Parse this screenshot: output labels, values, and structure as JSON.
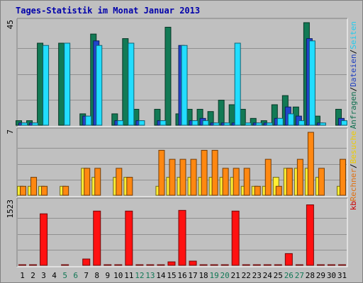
{
  "chart_data": {
    "type": "bar",
    "title": "Tages-Statistik im Monat Januar 2013",
    "categories": [
      "1",
      "2",
      "3",
      "4",
      "5",
      "6",
      "7",
      "8",
      "9",
      "10",
      "11",
      "12",
      "13",
      "14",
      "15",
      "16",
      "17",
      "18",
      "19",
      "20",
      "21",
      "22",
      "23",
      "24",
      "25",
      "26",
      "27",
      "28",
      "29",
      "30",
      "31"
    ],
    "weekend_days": [
      "5",
      "6",
      "12",
      "13",
      "19",
      "20",
      "26",
      "27"
    ],
    "panels": [
      {
        "id": "top",
        "ymax": 45,
        "ymax_label": "45",
        "grid": true,
        "right_labels": [
          {
            "text": "Anfragen",
            "color": "#0f6f4f"
          },
          {
            "text": "/",
            "color": "#000000"
          },
          {
            "text": "Dateien",
            "color": "#1f3fbf"
          },
          {
            "text": "/",
            "color": "#000000"
          },
          {
            "text": "Seiten",
            "color": "#22ccee"
          }
        ],
        "series": [
          {
            "name": "Anfragen",
            "color": "#127a55",
            "values": [
              2,
              2,
              36,
              0,
              36,
              0,
              5,
              40,
              0,
              5,
              38,
              7,
              0,
              7,
              43,
              5,
              7,
              7,
              6,
              11,
              9,
              7,
              3,
              2,
              9,
              13,
              8,
              45,
              4,
              0,
              7
            ]
          },
          {
            "name": "Dateien",
            "color": "#2144cc",
            "values": [
              1,
              1,
              0,
              0,
              0,
              0,
              4,
              37,
              0,
              2,
              0,
              2,
              0,
              2,
              0,
              35,
              2,
              3,
              1,
              1,
              1,
              0,
              1,
              1,
              3,
              8,
              4,
              38,
              1,
              0,
              3
            ]
          },
          {
            "name": "Seiten",
            "color": "#22ddff",
            "values": [
              1,
              1,
              35,
              0,
              36,
              0,
              4,
              35,
              0,
              2,
              36,
              2,
              0,
              2,
              0,
              35,
              2,
              2,
              1,
              1,
              36,
              1,
              1,
              1,
              3,
              5,
              2,
              37,
              1,
              0,
              2
            ]
          }
        ]
      },
      {
        "id": "middle",
        "ymax": 7,
        "ymax_label": "7",
        "grid": true,
        "right_labels": [
          {
            "text": "Rechner",
            "color": "#e07010"
          },
          {
            "text": "/",
            "color": "#000000"
          },
          {
            "text": "Besuche",
            "color": "#eecc00"
          }
        ],
        "series": [
          {
            "name": "Besuche",
            "color": "#ffee33",
            "values": [
              1,
              1,
              1,
              0,
              1,
              0,
              3,
              2,
              0,
              2,
              2,
              0,
              0,
              1,
              2,
              2,
              2,
              2,
              2,
              2,
              2,
              1,
              1,
              1,
              2,
              3,
              3,
              3,
              2,
              0,
              1
            ]
          },
          {
            "name": "Rechner",
            "color": "#ff8811",
            "values": [
              1,
              2,
              1,
              0,
              1,
              0,
              3,
              3,
              0,
              3,
              2,
              0,
              0,
              5,
              4,
              4,
              4,
              5,
              5,
              3,
              3,
              3,
              1,
              4,
              1,
              3,
              4,
              7,
              3,
              0,
              4
            ]
          }
        ]
      },
      {
        "id": "bottom",
        "ymax": 1523,
        "ymax_label": "1523",
        "grid": true,
        "right_labels": [
          {
            "text": "kb",
            "color": "#cc0000"
          }
        ],
        "series": [
          {
            "name": "kb",
            "color": "#ff1111",
            "values": [
              15,
              15,
              1246,
              0,
              15,
              0,
              153,
              1312,
              15,
              15,
              1312,
              15,
              15,
              15,
              84,
              1329,
              102,
              15,
              15,
              15,
              1312,
              15,
              15,
              15,
              15,
              284,
              15,
              1463,
              15,
              15,
              15
            ]
          }
        ]
      }
    ]
  }
}
